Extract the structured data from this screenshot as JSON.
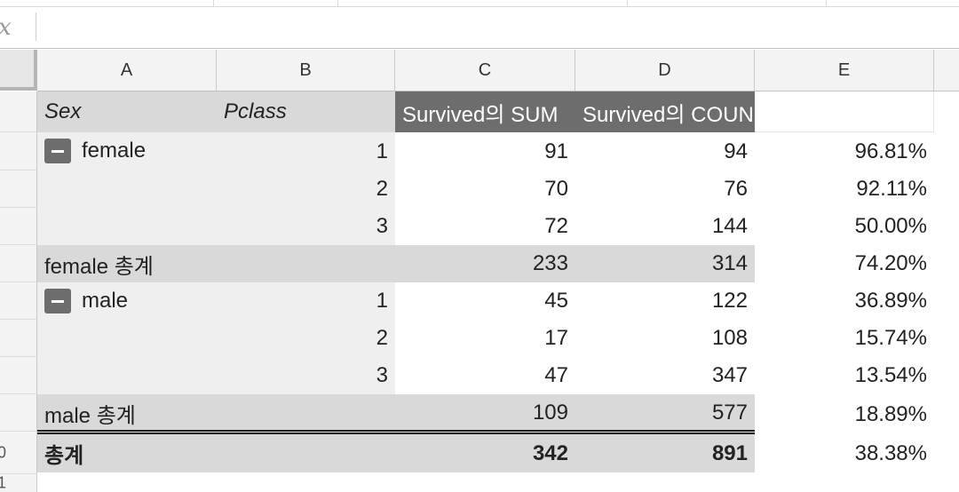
{
  "formula_bar": {
    "fx_label": "x",
    "value": ""
  },
  "columns": [
    "A",
    "B",
    "C",
    "D",
    "E"
  ],
  "row_numbers": [
    "",
    "",
    "",
    "",
    "",
    "",
    "",
    "",
    "",
    "0",
    "1"
  ],
  "pivot": {
    "headers": {
      "sex": "Sex",
      "pclass": "Pclass",
      "sum": "Survived의 SUM",
      "count": "Survived의 COUN"
    },
    "groups": [
      {
        "name": "female",
        "rows": [
          {
            "pclass": "1",
            "sum": "91",
            "count": "94",
            "pct": "96.81%"
          },
          {
            "pclass": "2",
            "sum": "70",
            "count": "76",
            "pct": "92.11%"
          },
          {
            "pclass": "3",
            "sum": "72",
            "count": "144",
            "pct": "50.00%"
          }
        ],
        "subtotal": {
          "label": "female 총계",
          "sum": "233",
          "count": "314",
          "pct": "74.20%"
        }
      },
      {
        "name": "male",
        "rows": [
          {
            "pclass": "1",
            "sum": "45",
            "count": "122",
            "pct": "36.89%"
          },
          {
            "pclass": "2",
            "sum": "17",
            "count": "108",
            "pct": "15.74%"
          },
          {
            "pclass": "3",
            "sum": "47",
            "count": "347",
            "pct": "13.54%"
          }
        ],
        "subtotal": {
          "label": "male 총계",
          "sum": "109",
          "count": "577",
          "pct": "18.89%"
        }
      }
    ],
    "grand_total": {
      "label": "총계",
      "sum": "342",
      "count": "891",
      "pct": "38.38%"
    }
  },
  "colors": {
    "pivot_header_dark": "#6d6d6d",
    "pivot_header_light": "#d9d9d9",
    "row_group_bg": "#efefef"
  }
}
